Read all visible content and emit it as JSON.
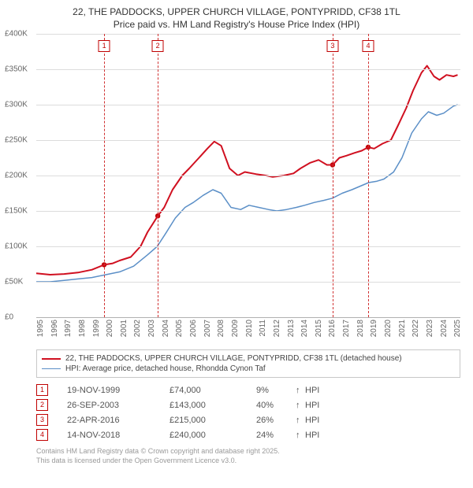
{
  "title_line1": "22, THE PADDOCKS, UPPER CHURCH VILLAGE, PONTYPRIDD, CF38 1TL",
  "title_line2": "Price paid vs. HM Land Registry's House Price Index (HPI)",
  "chart": {
    "type": "line",
    "background_color": "#ffffff",
    "grid_color": "#dcdcdc",
    "axis_color": "#b0b0b0",
    "label_color": "#666666",
    "label_fontsize": 10,
    "ylim": [
      0,
      400000
    ],
    "ytick_step": 50000,
    "yticks": [
      "£0",
      "£50K",
      "£100K",
      "£150K",
      "£200K",
      "£250K",
      "£300K",
      "£350K",
      "£400K"
    ],
    "xlim": [
      1995,
      2025.5
    ],
    "xticks": [
      1995,
      1996,
      1997,
      1998,
      1999,
      2000,
      2001,
      2002,
      2003,
      2004,
      2005,
      2006,
      2007,
      2008,
      2009,
      2010,
      2011,
      2012,
      2013,
      2014,
      2015,
      2016,
      2017,
      2018,
      2019,
      2020,
      2021,
      2022,
      2023,
      2024,
      2025
    ],
    "series": [
      {
        "name": "22, THE PADDOCKS, UPPER CHURCH VILLAGE, PONTYPRIDD, CF38 1TL (detached house)",
        "color": "#d01020",
        "line_width": 2,
        "points": [
          [
            1995,
            62000
          ],
          [
            1996,
            60000
          ],
          [
            1997,
            61000
          ],
          [
            1998,
            63000
          ],
          [
            1999,
            67000
          ],
          [
            1999.88,
            74000
          ],
          [
            2000.5,
            76000
          ],
          [
            2001,
            80000
          ],
          [
            2001.8,
            85000
          ],
          [
            2002.5,
            100000
          ],
          [
            2003,
            120000
          ],
          [
            2003.74,
            143000
          ],
          [
            2004.2,
            155000
          ],
          [
            2004.8,
            180000
          ],
          [
            2005.5,
            200000
          ],
          [
            2006,
            210000
          ],
          [
            2006.7,
            225000
          ],
          [
            2007.3,
            238000
          ],
          [
            2007.8,
            248000
          ],
          [
            2008.3,
            242000
          ],
          [
            2008.9,
            210000
          ],
          [
            2009.5,
            200000
          ],
          [
            2010,
            205000
          ],
          [
            2010.8,
            202000
          ],
          [
            2011.5,
            200000
          ],
          [
            2012,
            198000
          ],
          [
            2012.8,
            200000
          ],
          [
            2013.5,
            203000
          ],
          [
            2014,
            210000
          ],
          [
            2014.7,
            218000
          ],
          [
            2015.3,
            222000
          ],
          [
            2015.9,
            215000
          ],
          [
            2016.31,
            215000
          ],
          [
            2016.8,
            225000
          ],
          [
            2017.3,
            228000
          ],
          [
            2017.9,
            232000
          ],
          [
            2018.4,
            235000
          ],
          [
            2018.87,
            240000
          ],
          [
            2019.3,
            238000
          ],
          [
            2019.9,
            245000
          ],
          [
            2020.5,
            250000
          ],
          [
            2021,
            270000
          ],
          [
            2021.6,
            295000
          ],
          [
            2022.1,
            320000
          ],
          [
            2022.7,
            345000
          ],
          [
            2023.1,
            355000
          ],
          [
            2023.6,
            340000
          ],
          [
            2024,
            335000
          ],
          [
            2024.5,
            342000
          ],
          [
            2025,
            340000
          ],
          [
            2025.3,
            342000
          ]
        ]
      },
      {
        "name": "HPI: Average price, detached house, Rhondda Cynon Taf",
        "color": "#5b8fc7",
        "line_width": 1.5,
        "points": [
          [
            1995,
            50000
          ],
          [
            1996,
            50000
          ],
          [
            1997,
            52000
          ],
          [
            1998,
            54000
          ],
          [
            1999,
            56000
          ],
          [
            2000,
            60000
          ],
          [
            2001,
            64000
          ],
          [
            2002,
            72000
          ],
          [
            2003,
            88000
          ],
          [
            2003.7,
            100000
          ],
          [
            2004.3,
            118000
          ],
          [
            2005,
            140000
          ],
          [
            2005.7,
            155000
          ],
          [
            2006.3,
            162000
          ],
          [
            2007,
            172000
          ],
          [
            2007.7,
            180000
          ],
          [
            2008.3,
            175000
          ],
          [
            2009,
            155000
          ],
          [
            2009.7,
            152000
          ],
          [
            2010.3,
            158000
          ],
          [
            2011,
            155000
          ],
          [
            2011.7,
            152000
          ],
          [
            2012.3,
            150000
          ],
          [
            2013,
            152000
          ],
          [
            2013.7,
            155000
          ],
          [
            2014.3,
            158000
          ],
          [
            2015,
            162000
          ],
          [
            2015.7,
            165000
          ],
          [
            2016.3,
            168000
          ],
          [
            2017,
            175000
          ],
          [
            2017.7,
            180000
          ],
          [
            2018.3,
            185000
          ],
          [
            2018.9,
            190000
          ],
          [
            2019.5,
            192000
          ],
          [
            2020,
            195000
          ],
          [
            2020.7,
            205000
          ],
          [
            2021.3,
            225000
          ],
          [
            2022,
            260000
          ],
          [
            2022.7,
            280000
          ],
          [
            2023.2,
            290000
          ],
          [
            2023.8,
            285000
          ],
          [
            2024.3,
            288000
          ],
          [
            2025,
            298000
          ],
          [
            2025.3,
            300000
          ]
        ]
      }
    ],
    "sale_markers": [
      {
        "n": "1",
        "x": 1999.88,
        "y": 74000
      },
      {
        "n": "2",
        "x": 2003.74,
        "y": 143000
      },
      {
        "n": "3",
        "x": 2016.31,
        "y": 215000
      },
      {
        "n": "4",
        "x": 2018.87,
        "y": 240000
      }
    ],
    "marker_color": "#c00000",
    "marker_line_dash": "4,3"
  },
  "legend": {
    "border_color": "#c8c8c8",
    "items": [
      {
        "color": "#d01020",
        "width": 2,
        "label": "22, THE PADDOCKS, UPPER CHURCH VILLAGE, PONTYPRIDD, CF38 1TL (detached house)"
      },
      {
        "color": "#5b8fc7",
        "width": 1.5,
        "label": "HPI: Average price, detached house, Rhondda Cynon Taf"
      }
    ]
  },
  "sales_table": {
    "arrow": "↑",
    "hpi_label": "HPI",
    "rows": [
      {
        "n": "1",
        "date": "19-NOV-1999",
        "price": "£74,000",
        "pct": "9%"
      },
      {
        "n": "2",
        "date": "26-SEP-2003",
        "price": "£143,000",
        "pct": "40%"
      },
      {
        "n": "3",
        "date": "22-APR-2016",
        "price": "£215,000",
        "pct": "26%"
      },
      {
        "n": "4",
        "date": "14-NOV-2018",
        "price": "£240,000",
        "pct": "24%"
      }
    ]
  },
  "footer_line1": "Contains HM Land Registry data © Crown copyright and database right 2025.",
  "footer_line2": "This data is licensed under the Open Government Licence v3.0."
}
